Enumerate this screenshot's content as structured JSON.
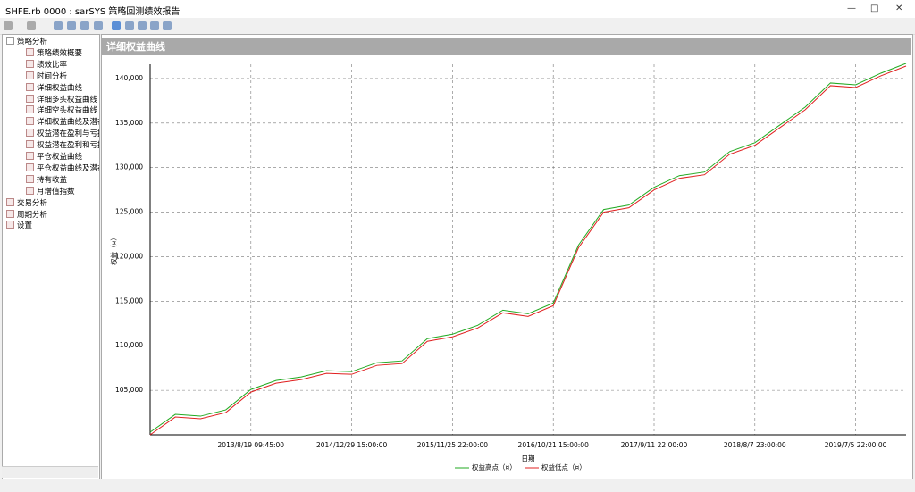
{
  "window": {
    "title": "SHFE.rb 0000 : sarSYS 策略回测绩效报告"
  },
  "tree": [
    {
      "label": "策略分析",
      "children": [
        "策略绩效概要",
        "绩效比率",
        "时间分析",
        "详细权益曲线",
        "详细多头权益曲线",
        "详细空头权益曲线",
        "详细权益曲线及潜在",
        "权益潜在盈利与亏损",
        "权益潜在盈利和亏损",
        "平仓权益曲线",
        "平仓权益曲线及潜在",
        "持有收益",
        "月增值指数"
      ]
    },
    {
      "label": "交易分析",
      "children": []
    },
    {
      "label": "周期分析",
      "children": []
    },
    {
      "label": "设置",
      "children": []
    }
  ],
  "chart_data": {
    "type": "line",
    "title": "详细权益曲线",
    "x_label": "日期",
    "y_label": "权益（¤）",
    "categories": [
      null,
      null,
      null,
      null,
      "2013/8/19 09:45:00",
      null,
      null,
      null,
      "2014/12/29 15:00:00",
      null,
      null,
      null,
      "2015/11/25 22:00:00",
      null,
      null,
      null,
      "2016/10/21 15:00:00",
      null,
      null,
      null,
      "2017/9/11 22:00:00",
      null,
      null,
      null,
      "2018/8/7 23:00:00",
      null,
      null,
      null,
      "2019/7/5 22:00:00",
      null,
      null
    ],
    "series": [
      {
        "name": "权益高点（¤）",
        "color": "#22aa22",
        "values": [
          100300,
          102300,
          102100,
          102800,
          105100,
          106100,
          106500,
          107200,
          107100,
          108100,
          108300,
          110800,
          111300,
          112300,
          114000,
          113600,
          114800,
          121300,
          125300,
          125800,
          127800,
          129100,
          129500,
          131800,
          132800,
          134800,
          136800,
          139500,
          139300,
          140600,
          141700
        ]
      },
      {
        "name": "权益低点（¤）",
        "color": "#e02020",
        "values": [
          100000,
          102000,
          101800,
          102500,
          104800,
          105800,
          106200,
          106900,
          106800,
          107800,
          108000,
          110500,
          111000,
          112000,
          113700,
          113300,
          114500,
          121000,
          125000,
          125500,
          127500,
          128800,
          129200,
          131500,
          132500,
          134500,
          136500,
          139200,
          139000,
          140300,
          141400
        ]
      }
    ],
    "ylim": [
      100000,
      141600
    ],
    "yticks": [
      {
        "value": 105000,
        "label": "105,000"
      },
      {
        "value": 110000,
        "label": "110,000"
      },
      {
        "value": 115000,
        "label": "115,000"
      },
      {
        "value": 120000,
        "label": "120,000"
      },
      {
        "value": 125000,
        "label": "125,000"
      },
      {
        "value": 130000,
        "label": "130,000"
      },
      {
        "value": 135000,
        "label": "135,000"
      },
      {
        "value": 140000,
        "label": "140,000"
      }
    ],
    "grid": true
  }
}
